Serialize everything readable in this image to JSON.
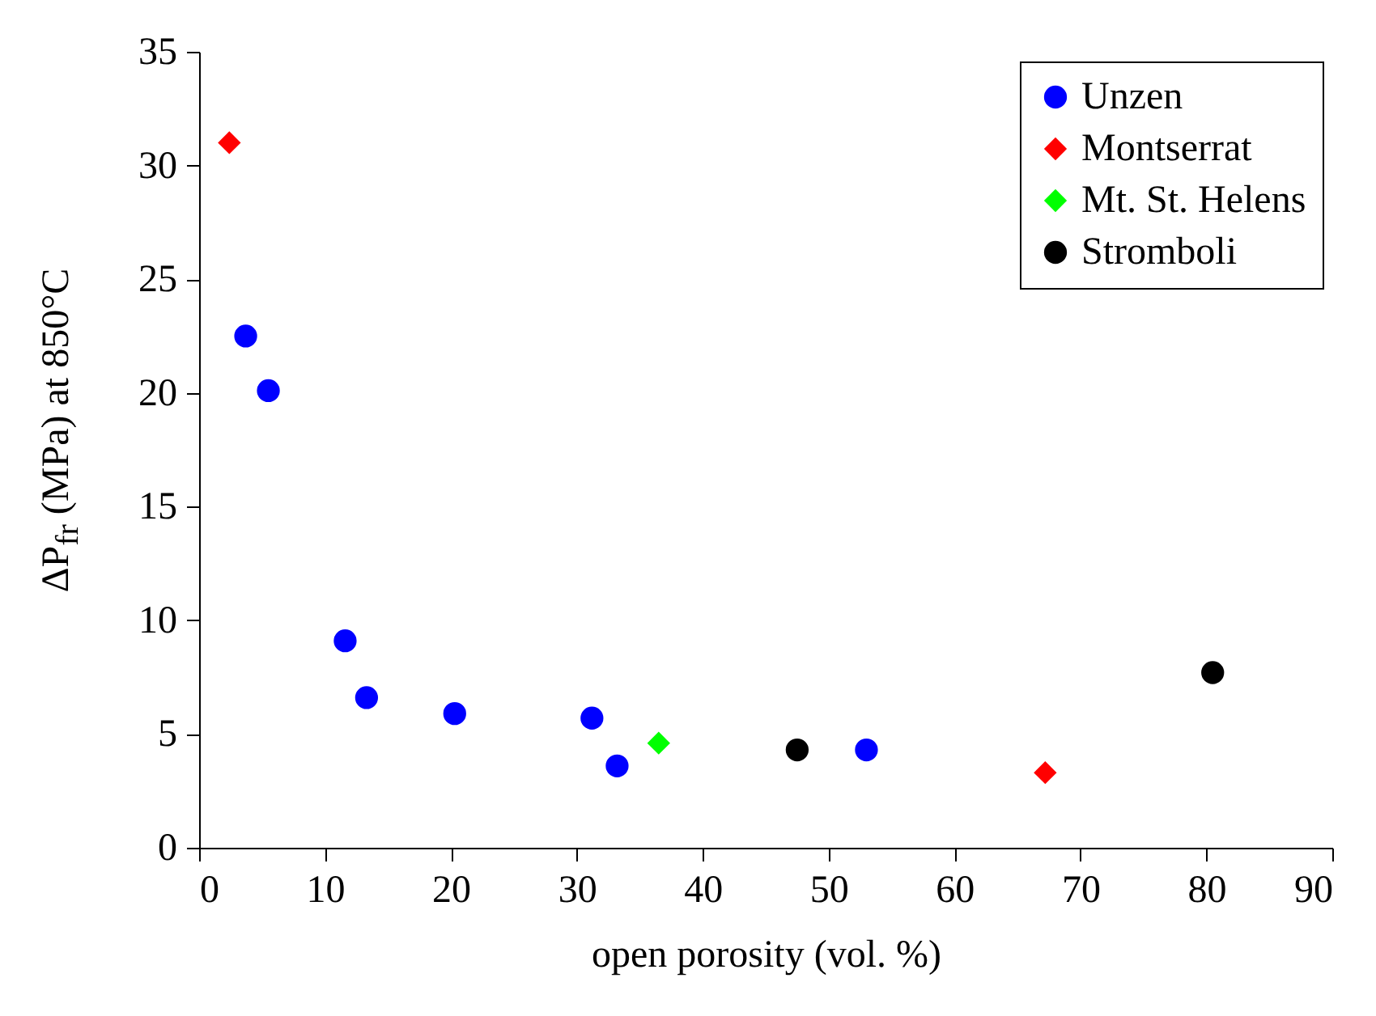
{
  "chart_data": {
    "type": "scatter",
    "xlabel": "open porosity (vol. %)",
    "ylabel": "ΔP$_{fr}$ (MPa) at 850°C",
    "xlim": [
      0,
      90
    ],
    "xticks": [
      0,
      10,
      20,
      30,
      40,
      50,
      60,
      70,
      80,
      90
    ],
    "ylim": [
      0,
      35
    ],
    "yticks": [
      0,
      5,
      10,
      15,
      20,
      25,
      30,
      35
    ],
    "grid": false,
    "legend": "top right",
    "series": [
      {
        "name": "Unzen",
        "color": "#0000ff",
        "marker": "circle",
        "x": [
          3.7,
          5.5,
          11.6,
          13.3,
          20.3,
          31.2,
          33.2,
          53.0
        ],
        "values": [
          22.5,
          20.1,
          9.1,
          6.6,
          5.9,
          5.7,
          3.6,
          4.3
        ]
      },
      {
        "name": "Montserrat",
        "color": "#ff0000",
        "marker": "diamond",
        "x": [
          2.4,
          67.2
        ],
        "values": [
          31.0,
          3.3
        ]
      },
      {
        "name": "Mt. St. Helens",
        "color": "#00ff00",
        "marker": "diamond",
        "x": [
          36.5
        ],
        "values": [
          4.6
        ]
      },
      {
        "name": "Stromboli",
        "color": "#000000",
        "marker": "circle",
        "x": [
          47.5,
          80.5
        ],
        "values": [
          4.3,
          7.7
        ]
      }
    ]
  }
}
